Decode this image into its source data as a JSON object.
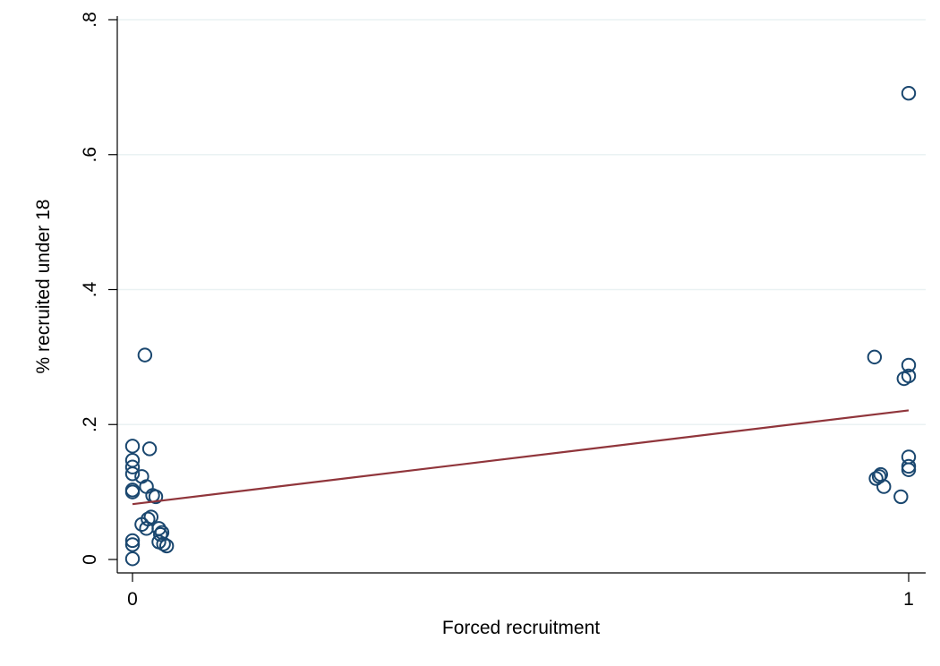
{
  "chart_data": {
    "type": "scatter",
    "title": "",
    "xlabel": "Forced recruitment",
    "ylabel": "% recruited under 18",
    "xlim": [
      -0.02,
      1.02
    ],
    "ylim": [
      0,
      0.8
    ],
    "x_ticks": [
      0,
      1
    ],
    "x_tick_labels": [
      "0",
      "1"
    ],
    "y_ticks": [
      0,
      0.2,
      0.4,
      0.6,
      0.8
    ],
    "y_tick_labels": [
      "0",
      ".2",
      ".4",
      ".6",
      ".8"
    ],
    "grid": "horizontal",
    "legend": "none",
    "colors": {
      "points": "#1a476f",
      "fit_line": "#90353b",
      "grid": "#eaf2f3",
      "axis": "#000000"
    },
    "series": [
      {
        "kind": "scatter",
        "points": [
          {
            "x": 0.0,
            "y": 0.168
          },
          {
            "x": 0.0,
            "y": 0.147
          },
          {
            "x": 0.0,
            "y": 0.137
          },
          {
            "x": 0.0,
            "y": 0.127
          },
          {
            "x": 0.0,
            "y": 0.103
          },
          {
            "x": 0.0,
            "y": 0.1
          },
          {
            "x": 0.0,
            "y": 0.028
          },
          {
            "x": 0.0,
            "y": 0.022
          },
          {
            "x": 0.0,
            "y": 0.001
          },
          {
            "x": 0.012,
            "y": 0.123
          },
          {
            "x": 0.012,
            "y": 0.052
          },
          {
            "x": 0.016,
            "y": 0.303
          },
          {
            "x": 0.018,
            "y": 0.108
          },
          {
            "x": 0.018,
            "y": 0.046
          },
          {
            "x": 0.02,
            "y": 0.06
          },
          {
            "x": 0.022,
            "y": 0.164
          },
          {
            "x": 0.024,
            "y": 0.063
          },
          {
            "x": 0.026,
            "y": 0.095
          },
          {
            "x": 0.03,
            "y": 0.093
          },
          {
            "x": 0.034,
            "y": 0.046
          },
          {
            "x": 0.034,
            "y": 0.026
          },
          {
            "x": 0.036,
            "y": 0.037
          },
          {
            "x": 0.038,
            "y": 0.04
          },
          {
            "x": 0.04,
            "y": 0.023
          },
          {
            "x": 0.044,
            "y": 0.02
          },
          {
            "x": 0.956,
            "y": 0.3
          },
          {
            "x": 0.958,
            "y": 0.12
          },
          {
            "x": 0.962,
            "y": 0.123
          },
          {
            "x": 0.964,
            "y": 0.126
          },
          {
            "x": 0.968,
            "y": 0.108
          },
          {
            "x": 0.99,
            "y": 0.093
          },
          {
            "x": 0.994,
            "y": 0.268
          },
          {
            "x": 1.0,
            "y": 0.691
          },
          {
            "x": 1.0,
            "y": 0.288
          },
          {
            "x": 1.0,
            "y": 0.272
          },
          {
            "x": 1.0,
            "y": 0.152
          },
          {
            "x": 1.0,
            "y": 0.138
          },
          {
            "x": 1.0,
            "y": 0.133
          }
        ]
      },
      {
        "kind": "linear-fit",
        "x": [
          0,
          1
        ],
        "y": [
          0.082,
          0.221
        ]
      }
    ]
  }
}
